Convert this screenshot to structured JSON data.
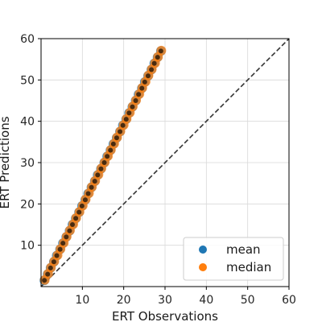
{
  "chart_data": {
    "type": "scatter",
    "xlabel": "ERT Observations",
    "ylabel": "ERT Predictions",
    "xlim": [
      0,
      60
    ],
    "ylim": [
      0,
      60
    ],
    "xticks": [
      10,
      20,
      30,
      40,
      50,
      60
    ],
    "yticks": [
      10,
      20,
      30,
      40,
      50,
      60
    ],
    "grid": true,
    "legend_position": "lower-right",
    "reference_line": {
      "style": "dashed",
      "color": "#333333",
      "from": [
        0,
        0
      ],
      "to": [
        60,
        60
      ]
    },
    "series": [
      {
        "name": "mean",
        "color": "#1f77b4",
        "x": [
          0.8,
          1.6,
          2.3,
          3.1,
          3.8,
          4.6,
          5.3,
          6.1,
          6.9,
          7.6,
          8.4,
          9.2,
          9.9,
          10.7,
          11.4,
          12.2,
          13.0,
          13.7,
          14.5,
          15.3,
          16.0,
          16.8,
          17.5,
          18.3,
          19.1,
          19.8,
          20.6,
          21.3,
          22.1,
          22.9,
          23.6,
          24.4,
          25.1,
          25.9,
          26.7,
          27.4,
          28.2,
          29.0
        ],
        "y": [
          1.5,
          3.0,
          4.5,
          6.0,
          7.5,
          9.0,
          10.5,
          12.0,
          13.5,
          15.0,
          16.5,
          18.0,
          19.5,
          21.0,
          22.5,
          24.0,
          25.5,
          27.0,
          28.5,
          30.0,
          31.5,
          33.0,
          34.5,
          36.0,
          37.5,
          39.0,
          40.5,
          42.0,
          43.5,
          45.0,
          46.5,
          48.0,
          49.5,
          51.0,
          52.5,
          54.0,
          55.5,
          57.0
        ]
      },
      {
        "name": "median",
        "color": "#ff7f0e",
        "x": [
          0.9,
          1.7,
          2.4,
          3.2,
          4.0,
          4.7,
          5.5,
          6.2,
          7.0,
          7.8,
          8.5,
          9.3,
          10.1,
          10.8,
          11.6,
          12.3,
          13.1,
          13.9,
          14.6,
          15.4,
          16.2,
          16.9,
          17.7,
          18.4,
          19.2,
          20.0,
          20.7,
          21.5,
          22.2,
          23.0,
          23.8,
          24.5,
          25.3,
          26.0,
          26.8,
          27.6,
          28.3,
          29.1
        ],
        "y": [
          1.6,
          3.1,
          4.6,
          6.1,
          7.6,
          9.1,
          10.6,
          12.1,
          13.6,
          15.1,
          16.6,
          18.1,
          19.6,
          21.1,
          22.6,
          24.1,
          25.6,
          27.1,
          28.6,
          30.1,
          31.6,
          33.1,
          34.6,
          36.1,
          37.6,
          39.1,
          40.6,
          42.1,
          43.6,
          45.1,
          46.6,
          48.1,
          49.6,
          51.1,
          52.6,
          54.1,
          55.6,
          57.1
        ]
      }
    ]
  }
}
